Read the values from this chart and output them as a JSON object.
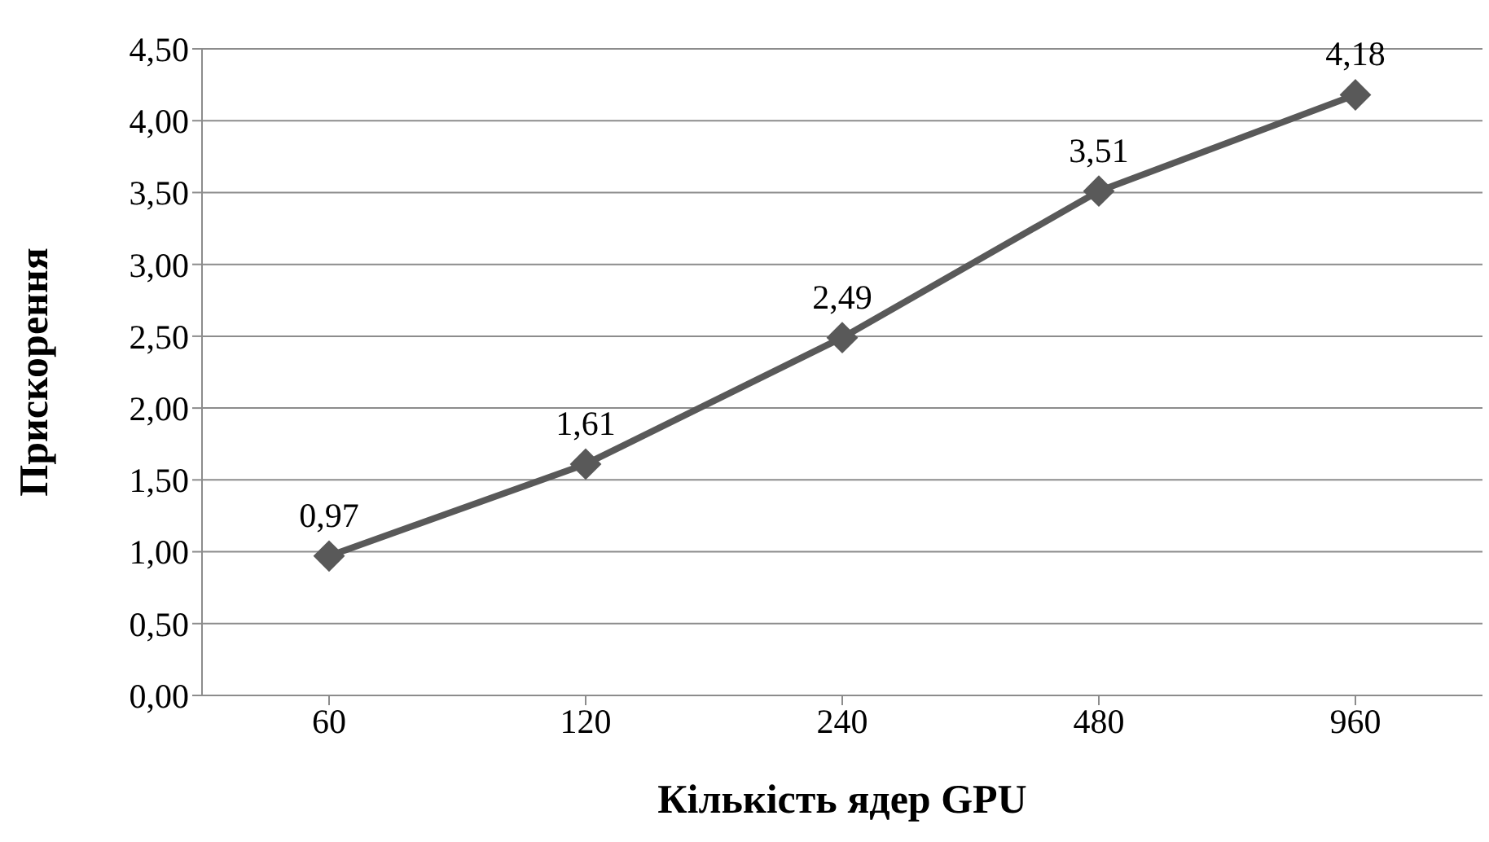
{
  "chart_data": {
    "type": "line",
    "xlabel": "Кількість ядер GPU",
    "ylabel": "Прискорення",
    "categories": [
      "60",
      "120",
      "240",
      "480",
      "960"
    ],
    "series": [
      {
        "color": "#595959",
        "values": [
          0.97,
          1.61,
          2.49,
          3.51,
          4.18
        ],
        "value_labels": [
          "0,97",
          "1,61",
          "2,49",
          "3,51",
          "4,18"
        ]
      }
    ],
    "ylim": [
      0,
      4.5
    ],
    "yticks": [
      {
        "value": 0,
        "label": "0,00"
      },
      {
        "value": 0.5,
        "label": "0,50"
      },
      {
        "value": 1,
        "label": "1,00"
      },
      {
        "value": 1.5,
        "label": "1,50"
      },
      {
        "value": 2,
        "label": "2,00"
      },
      {
        "value": 2.5,
        "label": "2,50"
      },
      {
        "value": 3,
        "label": "3,00"
      },
      {
        "value": 3.5,
        "label": "3,50"
      },
      {
        "value": 4,
        "label": "4,00"
      },
      {
        "value": 4.5,
        "label": "4,50"
      }
    ],
    "grid": "y",
    "marker": "diamond",
    "line_style": "solid",
    "legend": false
  }
}
